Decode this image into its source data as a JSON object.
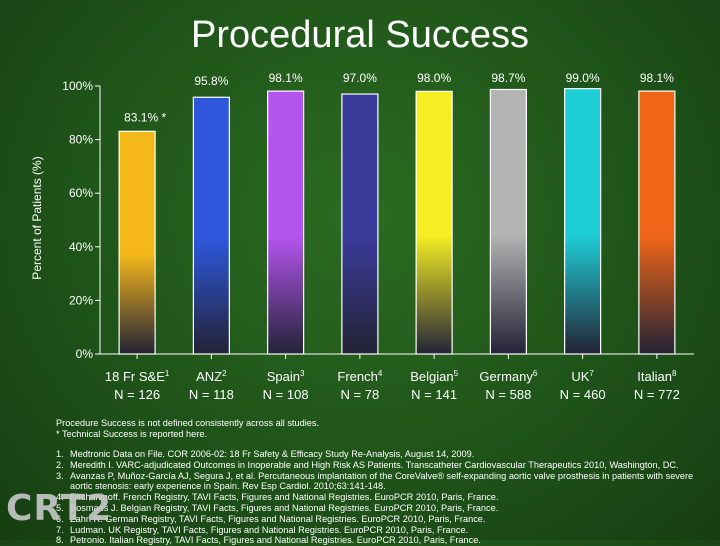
{
  "title": "Procedural Success",
  "chart_data": {
    "type": "bar",
    "ylabel": "Percent of Patients (%)",
    "ylim": [
      0,
      100
    ],
    "yticks": [
      {
        "value": 0,
        "label": "0%"
      },
      {
        "value": 20,
        "label": "20%"
      },
      {
        "value": 40,
        "label": "40%"
      },
      {
        "value": 60,
        "label": "60%"
      },
      {
        "value": 80,
        "label": "80%"
      },
      {
        "value": 100,
        "label": "100%"
      }
    ],
    "categories": [
      {
        "name": "18 Fr S&E",
        "sup": "1",
        "n": "N = 126"
      },
      {
        "name": "ANZ",
        "sup": "2",
        "n": "N = 118"
      },
      {
        "name": "Spain",
        "sup": "3",
        "n": "N = 108"
      },
      {
        "name": "French",
        "sup": "4",
        "n": "N = 78"
      },
      {
        "name": "Belgian",
        "sup": "5",
        "n": "N = 141"
      },
      {
        "name": "Germany",
        "sup": "6",
        "n": "N = 588"
      },
      {
        "name": "UK",
        "sup": "7",
        "n": "N = 460"
      },
      {
        "name": "Italian",
        "sup": "8",
        "n": "N = 772"
      }
    ],
    "values": [
      83.1,
      95.8,
      98.1,
      97.0,
      98.0,
      98.7,
      99.0,
      98.1
    ],
    "data_labels": [
      "83.1% *",
      "95.8%",
      "98.1%",
      "97.0%",
      "98.0%",
      "98.7%",
      "99.0%",
      "98.1%"
    ],
    "colors": [
      "#f5b81a",
      "#2e57dc",
      "#b555f0",
      "#3a3a9a",
      "#f4ee22",
      "#b4b4b4",
      "#1ecfd6",
      "#ef6618"
    ]
  },
  "notes": [
    "Procedure Success is not defined consistently across all studies.",
    "* Technical Success is reported here."
  ],
  "references": [
    {
      "num": "1.",
      "text": "Medtronic Data on File. COR 2006-02: 18 Fr Safety & Efficacy Study Re-Analysis, August 14, 2009."
    },
    {
      "num": "2.",
      "text": "Meredith I. VARC-adjudicated Outcomes in Inoperable and High Risk AS Patients. Transcatheter Cardiovascular Therapeutics 2010, Washington, DC."
    },
    {
      "num": "3.",
      "text": "Avanzas P, Muñoz-García AJ, Segura J, et al. Percutaneous implantation of the CoreValve® self-expanding aortic valve prosthesis in patients with severe aortic stenosis: early experience in Spain. Rev Esp Cardiol. 2010;63:141-148."
    },
    {
      "num": "4.",
      "text": "Eltchaninoff. French Registry, TAVI Facts, Figures and National Registries. EuroPCR 2010, Paris, France."
    },
    {
      "num": "5.",
      "text": "Bosmans J. Belgian Registry, TAVI Facts, Figures and National Registries. EuroPCR 2010, Paris, France."
    },
    {
      "num": "6.",
      "text": "Zahn R. German Registry, TAVI Facts, Figures and National Registries. EuroPCR 2010, Paris, France."
    },
    {
      "num": "7.",
      "text": "Ludman. UK Registry, TAVI Facts, Figures and National Registries. EuroPCR 2010, Paris, France."
    },
    {
      "num": "8.",
      "text": "Petronio. Italian Registry, TAVI Facts, Figures and National Registries. EuroPCR 2010, Paris, France."
    }
  ],
  "logo": "CRT2"
}
